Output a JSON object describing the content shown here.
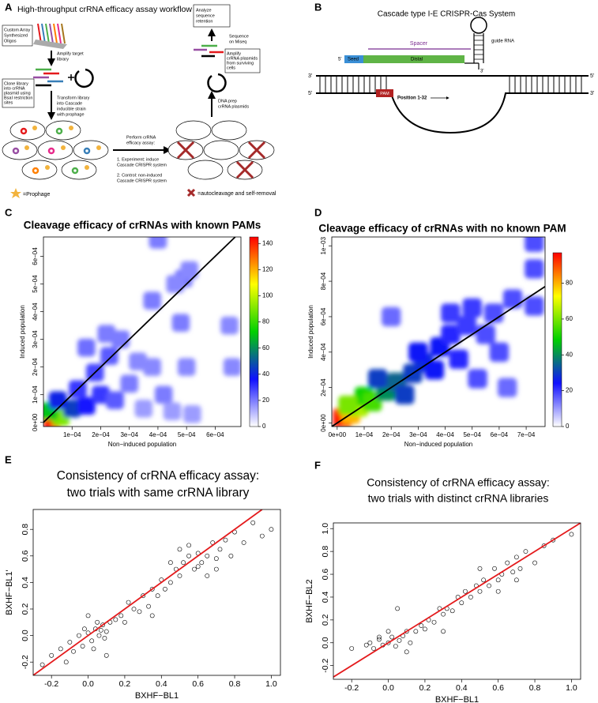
{
  "diagrams": {
    "A": {
      "label": "A",
      "title": "High-throughput crRNA efficacy assay workflow",
      "oligos": [
        "Custom Array",
        "Synthesized",
        "Oligos"
      ],
      "amplify": [
        "Amplify target",
        "library"
      ],
      "clone": [
        "Clone library",
        "into crRNA",
        "plasmid using",
        "BsaI restriction",
        "sites"
      ],
      "transform": [
        "Transform library",
        "into Cascade",
        "inducible strain",
        "with prophage"
      ],
      "perform": [
        "Perform crRNA",
        "efficacy assay:"
      ],
      "experiment": [
        "1. Experiment: induce",
        "Cascade CRISPR system"
      ],
      "control": [
        "2. Control: non-induced",
        "Cascade CRISPR system"
      ],
      "prophage": "=Prophage",
      "autocleavage": "=autocleavage and self-removal",
      "dnaprep": [
        "DNA prep",
        "crRNA plasmids"
      ],
      "amplify_surviving": [
        "Amplify",
        "crRNA plasmids",
        "from surviving",
        "cells"
      ],
      "sequence": [
        "Sequence",
        "on Miseq"
      ],
      "analyze": [
        "Analyze",
        "sequence",
        "retention"
      ]
    },
    "B": {
      "label": "B",
      "title": "Cascade type I-E CRISPR-Cas System",
      "spacer": "Spacer",
      "seed": "Seed",
      "distal": "Distal",
      "guide": "guide RNA",
      "position": "Position 1-32",
      "pam": "PAM",
      "five_prime": "5'",
      "three_prime": "3'"
    }
  },
  "chart_data": [
    {
      "type": "density",
      "panel": "C",
      "title": [
        "Cleavage efficacy of crRNAs with known PAMs"
      ],
      "xlabel": "Non−induced population",
      "ylabel": "Induced population",
      "x": [
        3e-05,
        6e-05,
        2e-05,
        0.0001,
        5e-05,
        0.00015,
        0.00012,
        0.0002,
        0.00025,
        0.00018,
        0.00023,
        0.0003,
        0.00015,
        0.00027,
        0.00022,
        0.00033,
        0.00038,
        0.00042,
        0.0005,
        0.00038,
        0.00048,
        0.00049,
        0.00051,
        0.00046,
        0.0004,
        0.00065,
        0.00066,
        0.00052,
        0.00045,
        0.00035
      ],
      "values": [
        1e-05,
        2e-05,
        4e-05,
        5e-05,
        8e-05,
        6e-05,
        0.00012,
        0.0001,
        8e-05,
        0.00018,
        0.00024,
        0.00014,
        0.00027,
        0.0003,
        0.00032,
        0.00022,
        0.0002,
        0.0001,
        0.0002,
        0.00044,
        0.00036,
        0.00052,
        0.00055,
        0.0005,
        0.00066,
        0.00035,
        0.0002,
        3e-05,
        4e-05,
        5e-05
      ],
      "density": [
        145,
        90,
        70,
        45,
        40,
        35,
        30,
        30,
        25,
        28,
        25,
        20,
        22,
        20,
        20,
        18,
        18,
        20,
        18,
        20,
        20,
        20,
        18,
        18,
        20,
        18,
        18,
        15,
        15,
        15
      ],
      "xlim": [
        0,
        0.00069
      ],
      "ylim": [
        -1.5e-05,
        0.00067
      ],
      "xticks": [
        {
          "value": 0.0001,
          "label": "1e−04"
        },
        {
          "value": 0.0002,
          "label": "2e−04"
        },
        {
          "value": 0.0003,
          "label": "3e−04"
        },
        {
          "value": 0.0004,
          "label": "4e−04"
        },
        {
          "value": 0.0005,
          "label": "5e−04"
        },
        {
          "value": 0.0006,
          "label": "6e−04"
        }
      ],
      "yticks": [
        {
          "value": 0,
          "label": "0e+00"
        },
        {
          "value": 0.0001,
          "label": "1e−04"
        },
        {
          "value": 0.0002,
          "label": "2e−04"
        },
        {
          "value": 0.0003,
          "label": "3e−04"
        },
        {
          "value": 0.0004,
          "label": "4e−04"
        },
        {
          "value": 0.0005,
          "label": "5e−04"
        },
        {
          "value": 0.0006,
          "label": "6e−04"
        }
      ],
      "clim": [
        0,
        145
      ],
      "cticks": [
        0,
        20,
        40,
        60,
        80,
        100,
        120,
        140
      ],
      "colormap": [
        "#ffffff",
        "#1010ff",
        "#00d000",
        "#ffff00",
        "#ff0000"
      ],
      "diagonal": true,
      "line_color": "#000000"
    },
    {
      "type": "density",
      "panel": "D",
      "title": [
        "Cleavage efficacy of crRNAs with no known PAM"
      ],
      "xlabel": "Non−induced population",
      "ylabel": "Induced population",
      "x": [
        2e-05,
        5e-05,
        8e-05,
        0.0001,
        0.00013,
        0.00018,
        0.00015,
        0.00022,
        0.00025,
        0.00028,
        0.00032,
        0.0003,
        0.00036,
        0.00038,
        0.00042,
        0.00045,
        0.00048,
        0.00042,
        0.0005,
        0.00055,
        0.00058,
        0.0006,
        0.00052,
        0.00063,
        0.0002,
        0.00073,
        0.00073,
        0.00073,
        0.00065,
        4e-05
      ],
      "values": [
        3e-05,
        5e-05,
        9e-05,
        0.00015,
        0.00012,
        0.00018,
        0.00025,
        0.00023,
        0.00016,
        0.00028,
        0.00034,
        0.0004,
        0.0003,
        0.00043,
        0.0005,
        0.00036,
        0.00055,
        0.00062,
        0.00065,
        0.0005,
        0.00062,
        0.0004,
        0.00025,
        0.0002,
        0.0006,
        0.00066,
        0.00087,
        0.00102,
        0.0007,
        0.0001
      ],
      "density": [
        95,
        80,
        65,
        50,
        55,
        40,
        30,
        35,
        30,
        30,
        28,
        25,
        25,
        25,
        22,
        22,
        20,
        20,
        20,
        18,
        18,
        18,
        18,
        15,
        15,
        18,
        18,
        18,
        18,
        60
      ],
      "xlim": [
        -2e-05,
        0.00077
      ],
      "ylim": [
        -2e-05,
        0.00105
      ],
      "xticks": [
        {
          "value": 0,
          "label": "0e+00"
        },
        {
          "value": 0.0001,
          "label": "1e−04"
        },
        {
          "value": 0.0002,
          "label": "2e−04"
        },
        {
          "value": 0.0003,
          "label": "3e−04"
        },
        {
          "value": 0.0004,
          "label": "4e−04"
        },
        {
          "value": 0.0005,
          "label": "5e−04"
        },
        {
          "value": 0.0006,
          "label": "6e−04"
        },
        {
          "value": 0.0007,
          "label": "7e−04"
        }
      ],
      "yticks": [
        {
          "value": 0,
          "label": "0e+00"
        },
        {
          "value": 0.0002,
          "label": "2e−04"
        },
        {
          "value": 0.0004,
          "label": "4e−04"
        },
        {
          "value": 0.0006,
          "label": "6e−04"
        },
        {
          "value": 0.0008,
          "label": "8e−04"
        },
        {
          "value": 0.001,
          "label": "1e−03"
        }
      ],
      "clim": [
        0,
        97
      ],
      "cticks": [
        0,
        20,
        40,
        60,
        80
      ],
      "colormap": [
        "#ffffff",
        "#1010ff",
        "#00d000",
        "#ffff00",
        "#ff0000"
      ],
      "diagonal": true,
      "line_color": "#000000"
    },
    {
      "type": "scatter",
      "panel": "E",
      "title": [
        "Consistency of crRNA efficacy assay:",
        "two trials with same crRNA library"
      ],
      "xlabel": "BXHF−BL1",
      "ylabel": "BXHF−BL1'",
      "x": [
        -0.15,
        -0.1,
        -0.08,
        -0.05,
        -0.03,
        0,
        0.02,
        0.04,
        0.06,
        0.08,
        0.1,
        0.12,
        -0.12,
        -0.02,
        0.03,
        0.05,
        0.07,
        0.09,
        0.15,
        0.18,
        0.2,
        0.22,
        0.25,
        0.28,
        0.3,
        0.33,
        0.35,
        0.38,
        0.4,
        0.42,
        0.45,
        0.48,
        0.5,
        0.52,
        0.55,
        0.58,
        0.6,
        0.62,
        0.65,
        0.68,
        0.7,
        0.72,
        0.75,
        0.78,
        0.8,
        0.85,
        0.9,
        0.95,
        1.0,
        0.55,
        0.6,
        0.65,
        0.5,
        0.45,
        -0.2,
        -0.25,
        0.0,
        0.1,
        0.35,
        0.7
      ],
      "values": [
        -0.1,
        -0.05,
        -0.12,
        0.0,
        -0.08,
        0.02,
        -0.04,
        0.05,
        0.0,
        0.08,
        0.03,
        0.1,
        -0.2,
        0.05,
        -0.1,
        0.1,
        0.04,
        -0.02,
        0.12,
        0.15,
        0.1,
        0.25,
        0.2,
        0.18,
        0.3,
        0.22,
        0.35,
        0.3,
        0.42,
        0.35,
        0.4,
        0.5,
        0.45,
        0.55,
        0.6,
        0.5,
        0.62,
        0.55,
        0.6,
        0.7,
        0.58,
        0.65,
        0.72,
        0.6,
        0.78,
        0.7,
        0.85,
        0.75,
        0.8,
        0.68,
        0.52,
        0.45,
        0.65,
        0.55,
        -0.15,
        -0.22,
        0.15,
        -0.15,
        0.15,
        0.5
      ],
      "xlim": [
        -0.3,
        1.05
      ],
      "ylim": [
        -0.3,
        0.95
      ],
      "xticks": [
        -0.2,
        {
          "value": 0,
          "label": "0.0"
        },
        0.2,
        0.4,
        0.6,
        0.8,
        {
          "value": 1,
          "label": "1.0"
        }
      ],
      "yticks": [
        -0.2,
        {
          "value": 0,
          "label": "0.0"
        },
        0.2,
        0.4,
        0.6,
        0.8
      ],
      "diagonal": true,
      "line_color": "#e41a1c"
    },
    {
      "type": "scatter",
      "panel": "F",
      "title": [
        "Consistency of crRNA efficacy assay:",
        "two trials with distinct crRNA libraries"
      ],
      "xlabel": "BXHF−BL1",
      "ylabel": "BXHF−BL2",
      "x": [
        -0.2,
        -0.12,
        -0.1,
        -0.08,
        -0.05,
        -0.03,
        0,
        0.02,
        0.04,
        0.06,
        0.08,
        0.1,
        0.12,
        0.15,
        0.18,
        0.2,
        0.22,
        0.25,
        0.28,
        0.3,
        0.32,
        0.35,
        0.38,
        0.4,
        0.42,
        0.45,
        0.48,
        0.5,
        0.52,
        0.55,
        0.58,
        0.6,
        0.62,
        0.65,
        0.68,
        0.7,
        0.72,
        0.75,
        0.8,
        0.85,
        0.9,
        1.0,
        0.05,
        0.0,
        -0.05,
        0.1,
        0.6,
        0.5,
        0.3,
        0.7
      ],
      "values": [
        -0.05,
        -0.02,
        0.0,
        -0.05,
        0.03,
        -0.02,
        0.0,
        0.05,
        -0.03,
        0.02,
        0.06,
        0.1,
        0.0,
        0.1,
        0.15,
        0.12,
        0.2,
        0.18,
        0.3,
        0.25,
        0.3,
        0.28,
        0.4,
        0.35,
        0.45,
        0.4,
        0.5,
        0.45,
        0.55,
        0.5,
        0.65,
        0.55,
        0.6,
        0.7,
        0.62,
        0.75,
        0.65,
        0.8,
        0.7,
        0.85,
        0.9,
        0.95,
        0.3,
        0.1,
        0.05,
        -0.08,
        0.45,
        0.65,
        0.1,
        0.55
      ],
      "xlim": [
        -0.3,
        1.05
      ],
      "ylim": [
        -0.32,
        1.05
      ],
      "xticks": [
        -0.2,
        {
          "value": 0,
          "label": "0.0"
        },
        0.2,
        0.4,
        0.6,
        0.8,
        {
          "value": 1,
          "label": "1.0"
        }
      ],
      "yticks": [
        -0.2,
        {
          "value": 0,
          "label": "0.0"
        },
        0.2,
        0.4,
        0.6,
        0.8,
        {
          "value": 1,
          "label": "1.0"
        }
      ],
      "diagonal": true,
      "line_color": "#e41a1c"
    }
  ]
}
